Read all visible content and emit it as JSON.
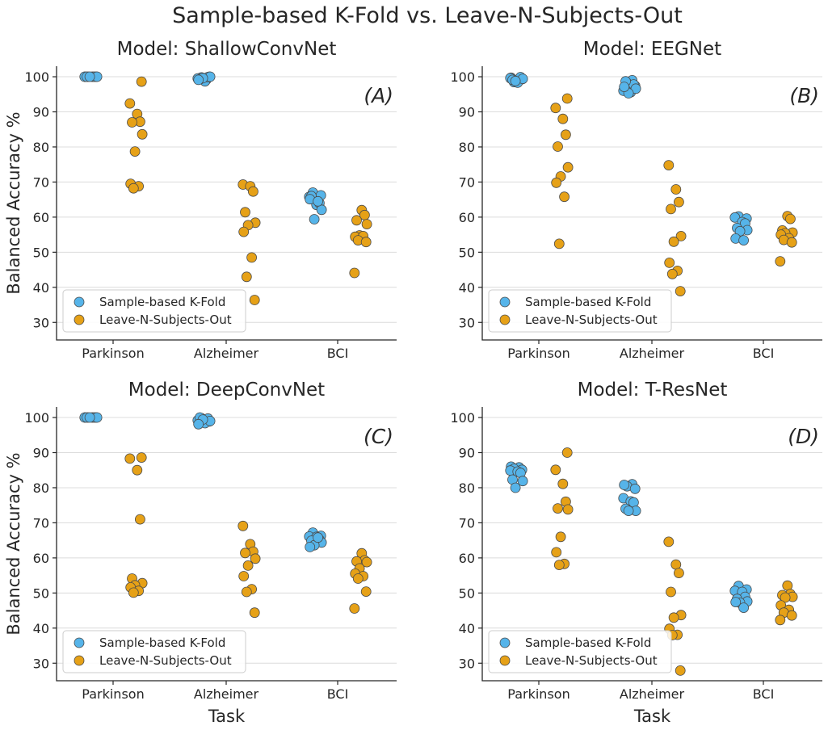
{
  "figure": {
    "title": "Sample-based K-Fold vs. Leave-N-Subjects-Out"
  },
  "colors": {
    "kfold": "#56b4e9",
    "lnso": "#e6a117"
  },
  "chart_data": [
    {
      "type": "scatter",
      "title": "Model: ShallowConvNet",
      "panel_letter": "(A)",
      "xlabel": "",
      "ylabel": "Balanced Accuracy %",
      "categories": [
        "Parkinson",
        "Alzheimer",
        "BCI"
      ],
      "y_ticks": [
        "30",
        "40",
        "50",
        "60",
        "70",
        "80",
        "90",
        "100"
      ],
      "ylim": [
        25,
        103
      ],
      "legend": "bottom-left",
      "series": [
        {
          "name": "Sample-based K-Fold",
          "values": [
            [
              100,
              100,
              100,
              100,
              100,
              100,
              100,
              100,
              100,
              100
            ],
            [
              99.2,
              99.8,
              100,
              99.5,
              98.7,
              99.9,
              99.3,
              100,
              99.6,
              99.1
            ],
            [
              67.0,
              66.2,
              65.8,
              63.5,
              64.0,
              66.0,
              62.1,
              59.4,
              65.1,
              64.5
            ]
          ]
        },
        {
          "name": "Leave-N-Subjects-Out",
          "values": [
            [
              98.6,
              92.4,
              89.4,
              87.2,
              87.0,
              83.6,
              78.7,
              69.5,
              68.8,
              68.2
            ],
            [
              69.3,
              68.8,
              67.3,
              61.4,
              58.4,
              57.7,
              55.8,
              48.5,
              43.0,
              36.4
            ],
            [
              62.0,
              60.6,
              59.1,
              58.0,
              54.8,
              54.4,
              54.6,
              53.4,
              52.9,
              44.1
            ]
          ]
        }
      ]
    },
    {
      "type": "scatter",
      "title": "Model: EEGNet",
      "panel_letter": "(B)",
      "xlabel": "",
      "ylabel": "",
      "categories": [
        "Parkinson",
        "Alzheimer",
        "BCI"
      ],
      "y_ticks": [
        "30",
        "40",
        "50",
        "60",
        "70",
        "80",
        "90",
        "100"
      ],
      "ylim": [
        25,
        103
      ],
      "legend": "bottom-left",
      "series": [
        {
          "name": "Sample-based K-Fold",
          "values": [
            [
              99.7,
              99.0,
              98.5,
              99.3,
              99.6,
              98.3,
              99.9,
              99.1,
              99.4,
              98.8
            ],
            [
              99.0,
              98.2,
              97.4,
              96.0,
              95.6,
              97.8,
              98.7,
              96.6,
              95.3,
              97.1
            ],
            [
              60.2,
              59.6,
              59.9,
              58.6,
              58.2,
              56.9,
              56.3,
              56.0,
              53.9,
              53.4
            ]
          ]
        },
        {
          "name": "Leave-N-Subjects-Out",
          "values": [
            [
              93.8,
              91.1,
              88.0,
              83.5,
              80.1,
              74.2,
              71.6,
              69.8,
              65.8,
              52.4
            ],
            [
              74.8,
              67.9,
              64.3,
              62.3,
              54.6,
              53.0,
              47.0,
              44.7,
              43.8,
              38.9
            ],
            [
              60.3,
              59.5,
              56.2,
              55.6,
              55.4,
              55.0,
              54.0,
              53.5,
              52.8,
              47.4
            ]
          ]
        }
      ]
    },
    {
      "type": "scatter",
      "title": "Model: DeepConvNet",
      "panel_letter": "(C)",
      "xlabel": "Task",
      "ylabel": "Balanced Accuracy %",
      "categories": [
        "Parkinson",
        "Alzheimer",
        "BCI"
      ],
      "y_ticks": [
        "30",
        "40",
        "50",
        "60",
        "70",
        "80",
        "90",
        "100"
      ],
      "ylim": [
        25,
        103
      ],
      "legend": "bottom-left",
      "series": [
        {
          "name": "Sample-based K-Fold",
          "values": [
            [
              100,
              100,
              100,
              100,
              100,
              100,
              100,
              100,
              100,
              100
            ],
            [
              99.5,
              99.8,
              98.9,
              99.2,
              98.4,
              99.7,
              100,
              99.0,
              99.4,
              98.1
            ],
            [
              67.2,
              66.3,
              66.1,
              66.0,
              65.2,
              64.9,
              64.4,
              63.6,
              63.1,
              65.8
            ]
          ]
        },
        {
          "name": "Leave-N-Subjects-Out",
          "values": [
            [
              88.6,
              88.3,
              85.0,
              71.0,
              54.1,
              52.8,
              52.2,
              51.6,
              50.6,
              50.1
            ],
            [
              69.1,
              63.9,
              61.8,
              61.4,
              59.8,
              57.8,
              54.8,
              51.1,
              50.3,
              44.4
            ],
            [
              61.3,
              59.3,
              59.0,
              58.8,
              57.0,
              55.5,
              54.8,
              54.1,
              50.4,
              45.6
            ]
          ]
        }
      ]
    },
    {
      "type": "scatter",
      "title": "Model: T-ResNet",
      "panel_letter": "(D)",
      "xlabel": "Task",
      "ylabel": "",
      "categories": [
        "Parkinson",
        "Alzheimer",
        "BCI"
      ],
      "y_ticks": [
        "30",
        "40",
        "50",
        "60",
        "70",
        "80",
        "90",
        "100"
      ],
      "ylim": [
        25,
        103
      ],
      "legend": "bottom-left",
      "series": [
        {
          "name": "Sample-based K-Fold",
          "values": [
            [
              86.0,
              85.8,
              85.4,
              85.1,
              84.9,
              84.6,
              84.2,
              82.3,
              81.9,
              80.0
            ],
            [
              81.0,
              80.4,
              79.7,
              77.0,
              76.1,
              75.8,
              74.0,
              73.4,
              73.4,
              80.8
            ],
            [
              52.0,
              51.0,
              50.6,
              50.3,
              48.9,
              48.3,
              47.6,
              47.2,
              47.4,
              45.8
            ]
          ]
        },
        {
          "name": "Leave-N-Subjects-Out",
          "values": [
            [
              90.0,
              85.1,
              81.1,
              76.0,
              74.1,
              73.8,
              66.0,
              61.6,
              58.3,
              58.0
            ],
            [
              64.6,
              58.1,
              55.7,
              50.3,
              43.7,
              43.0,
              39.8,
              38.1,
              38.0,
              27.9
            ],
            [
              52.1,
              49.7,
              49.4,
              48.9,
              48.7,
              46.5,
              45.2,
              44.4,
              43.6,
              42.3
            ]
          ]
        }
      ]
    }
  ]
}
